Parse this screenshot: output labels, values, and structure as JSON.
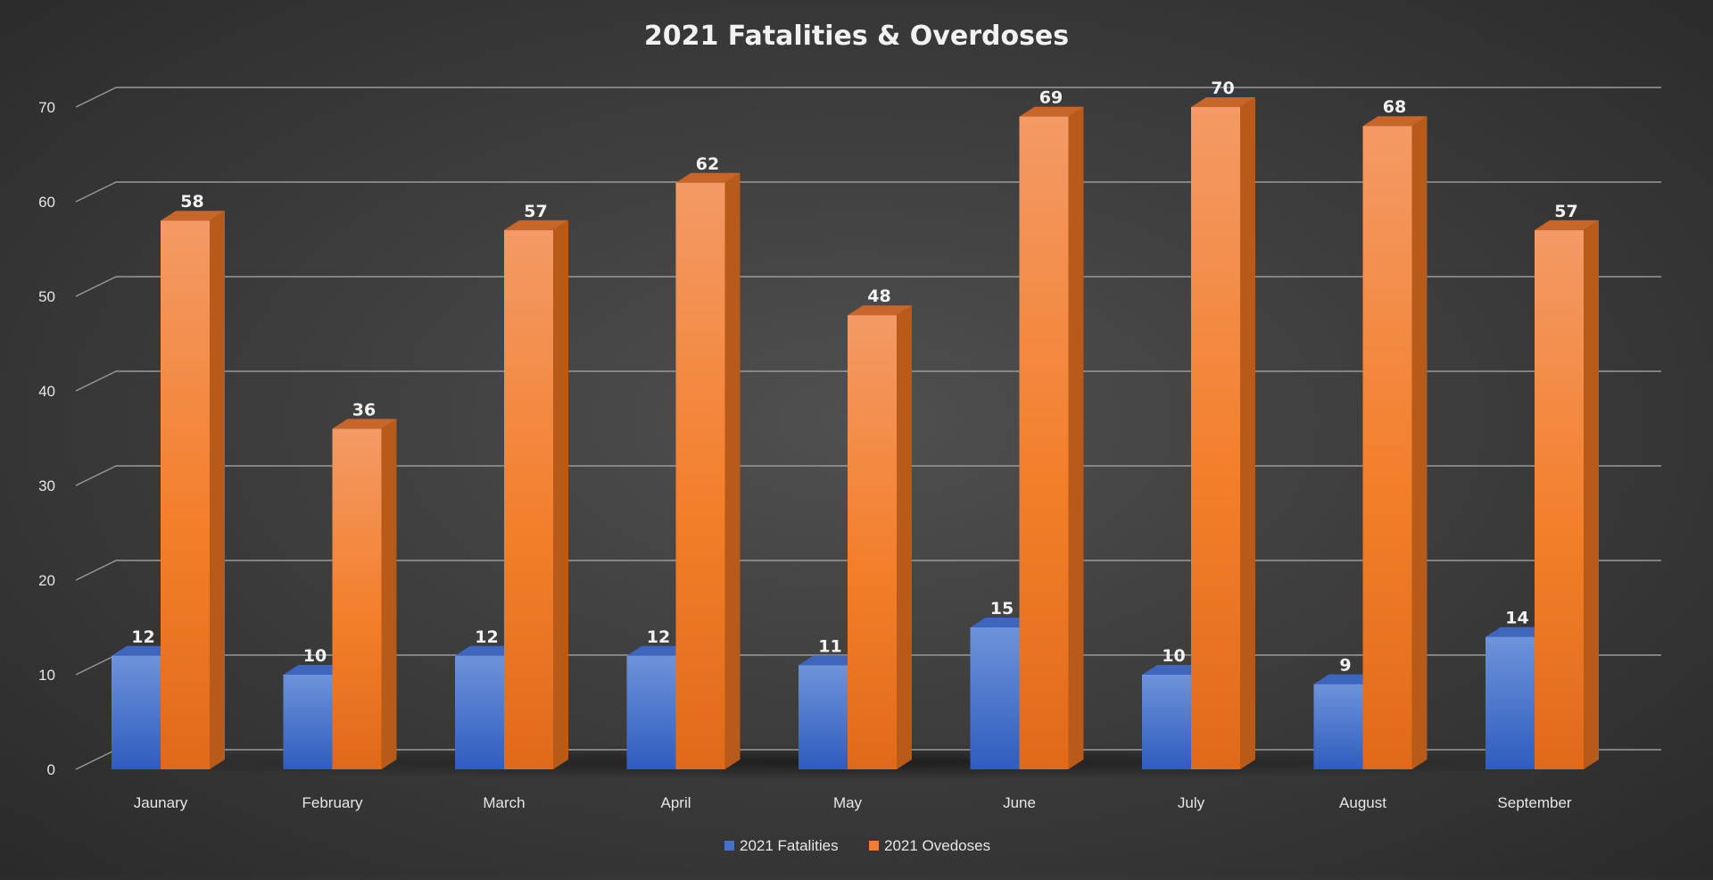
{
  "chart_data": {
    "type": "bar",
    "title": "2021 Fatalities & Overdoses",
    "categories": [
      "Jaunary",
      "February",
      "March",
      "April",
      "May",
      "June",
      "July",
      "August",
      "September"
    ],
    "series": [
      {
        "name": "2021 Fatalities",
        "values": [
          12,
          10,
          12,
          12,
          11,
          15,
          10,
          9,
          14
        ],
        "color": "#4472C4"
      },
      {
        "name": "2021 Ovedoses",
        "values": [
          58,
          36,
          57,
          62,
          48,
          69,
          70,
          68,
          57
        ],
        "color": "#ED7D31"
      }
    ],
    "ylim": [
      0,
      70
    ],
    "yticks": [
      0,
      10,
      20,
      30,
      40,
      50,
      60,
      70
    ],
    "grid": true,
    "legend": "bottom",
    "data_labels": true
  }
}
